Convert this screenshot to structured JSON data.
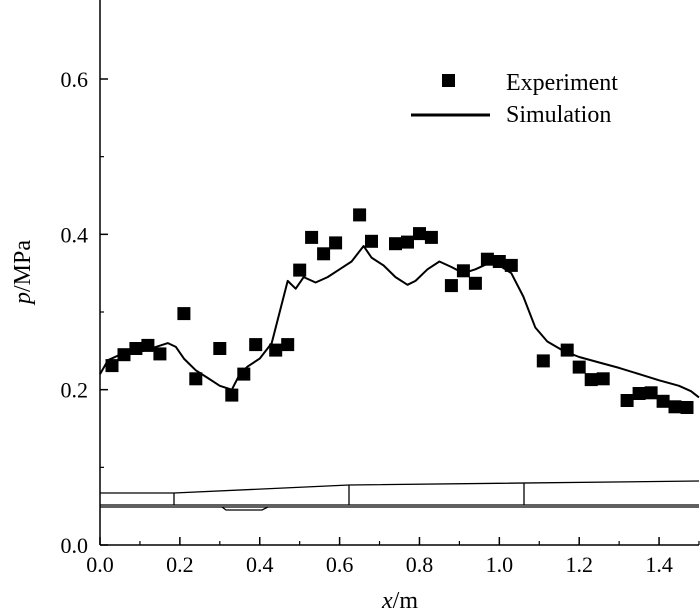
{
  "chart_data": {
    "type": "line",
    "xlabel_var": "x",
    "xlabel_unit": "/m",
    "ylabel_var": "p",
    "ylabel_unit": "/MPa",
    "xlim": [
      0.0,
      1.5
    ],
    "ylim": [
      0.0,
      0.7
    ],
    "xticks": [
      "0.0",
      "0.2",
      "0.4",
      "0.6",
      "0.8",
      "1.0",
      "1.2",
      "1.4"
    ],
    "yticks": [
      "0.0",
      "0.2",
      "0.4",
      "0.6"
    ],
    "legend_position": "top-right",
    "grid": false,
    "series": [
      {
        "name": "Experiment",
        "kind": "scatter",
        "marker": "square",
        "color": "#000000",
        "x": [
          0.03,
          0.06,
          0.09,
          0.12,
          0.15,
          0.21,
          0.24,
          0.3,
          0.33,
          0.36,
          0.39,
          0.44,
          0.47,
          0.5,
          0.53,
          0.56,
          0.59,
          0.65,
          0.68,
          0.74,
          0.77,
          0.8,
          0.83,
          0.88,
          0.91,
          0.94,
          0.97,
          1.0,
          1.03,
          1.11,
          1.17,
          1.2,
          1.23,
          1.26,
          1.32,
          1.35,
          1.38,
          1.41,
          1.44,
          1.47
        ],
        "y": [
          0.231,
          0.245,
          0.253,
          0.257,
          0.246,
          0.298,
          0.214,
          0.253,
          0.193,
          0.22,
          0.258,
          0.251,
          0.258,
          0.354,
          0.396,
          0.375,
          0.389,
          0.425,
          0.391,
          0.388,
          0.39,
          0.401,
          0.396,
          0.334,
          0.353,
          0.337,
          0.368,
          0.365,
          0.36,
          0.237,
          0.251,
          0.229,
          0.213,
          0.214,
          0.186,
          0.195,
          0.196,
          0.185,
          0.178,
          0.177
        ]
      },
      {
        "name": "Simulation",
        "kind": "line",
        "color": "#000000",
        "x": [
          0.0,
          0.02,
          0.05,
          0.08,
          0.11,
          0.14,
          0.17,
          0.19,
          0.21,
          0.24,
          0.27,
          0.3,
          0.33,
          0.35,
          0.37,
          0.4,
          0.43,
          0.45,
          0.47,
          0.49,
          0.51,
          0.54,
          0.57,
          0.6,
          0.63,
          0.66,
          0.68,
          0.71,
          0.74,
          0.77,
          0.79,
          0.82,
          0.85,
          0.88,
          0.91,
          0.94,
          0.97,
          1.0,
          1.03,
          1.06,
          1.09,
          1.12,
          1.16,
          1.2,
          1.25,
          1.3,
          1.35,
          1.4,
          1.45,
          1.48,
          1.5
        ],
        "y": [
          0.22,
          0.238,
          0.245,
          0.248,
          0.25,
          0.255,
          0.26,
          0.255,
          0.24,
          0.225,
          0.215,
          0.205,
          0.2,
          0.22,
          0.23,
          0.24,
          0.26,
          0.3,
          0.34,
          0.33,
          0.345,
          0.338,
          0.345,
          0.355,
          0.365,
          0.385,
          0.37,
          0.36,
          0.345,
          0.335,
          0.34,
          0.355,
          0.365,
          0.358,
          0.35,
          0.355,
          0.362,
          0.36,
          0.35,
          0.32,
          0.28,
          0.262,
          0.25,
          0.242,
          0.235,
          0.228,
          0.22,
          0.212,
          0.205,
          0.198,
          0.19
        ]
      }
    ]
  }
}
